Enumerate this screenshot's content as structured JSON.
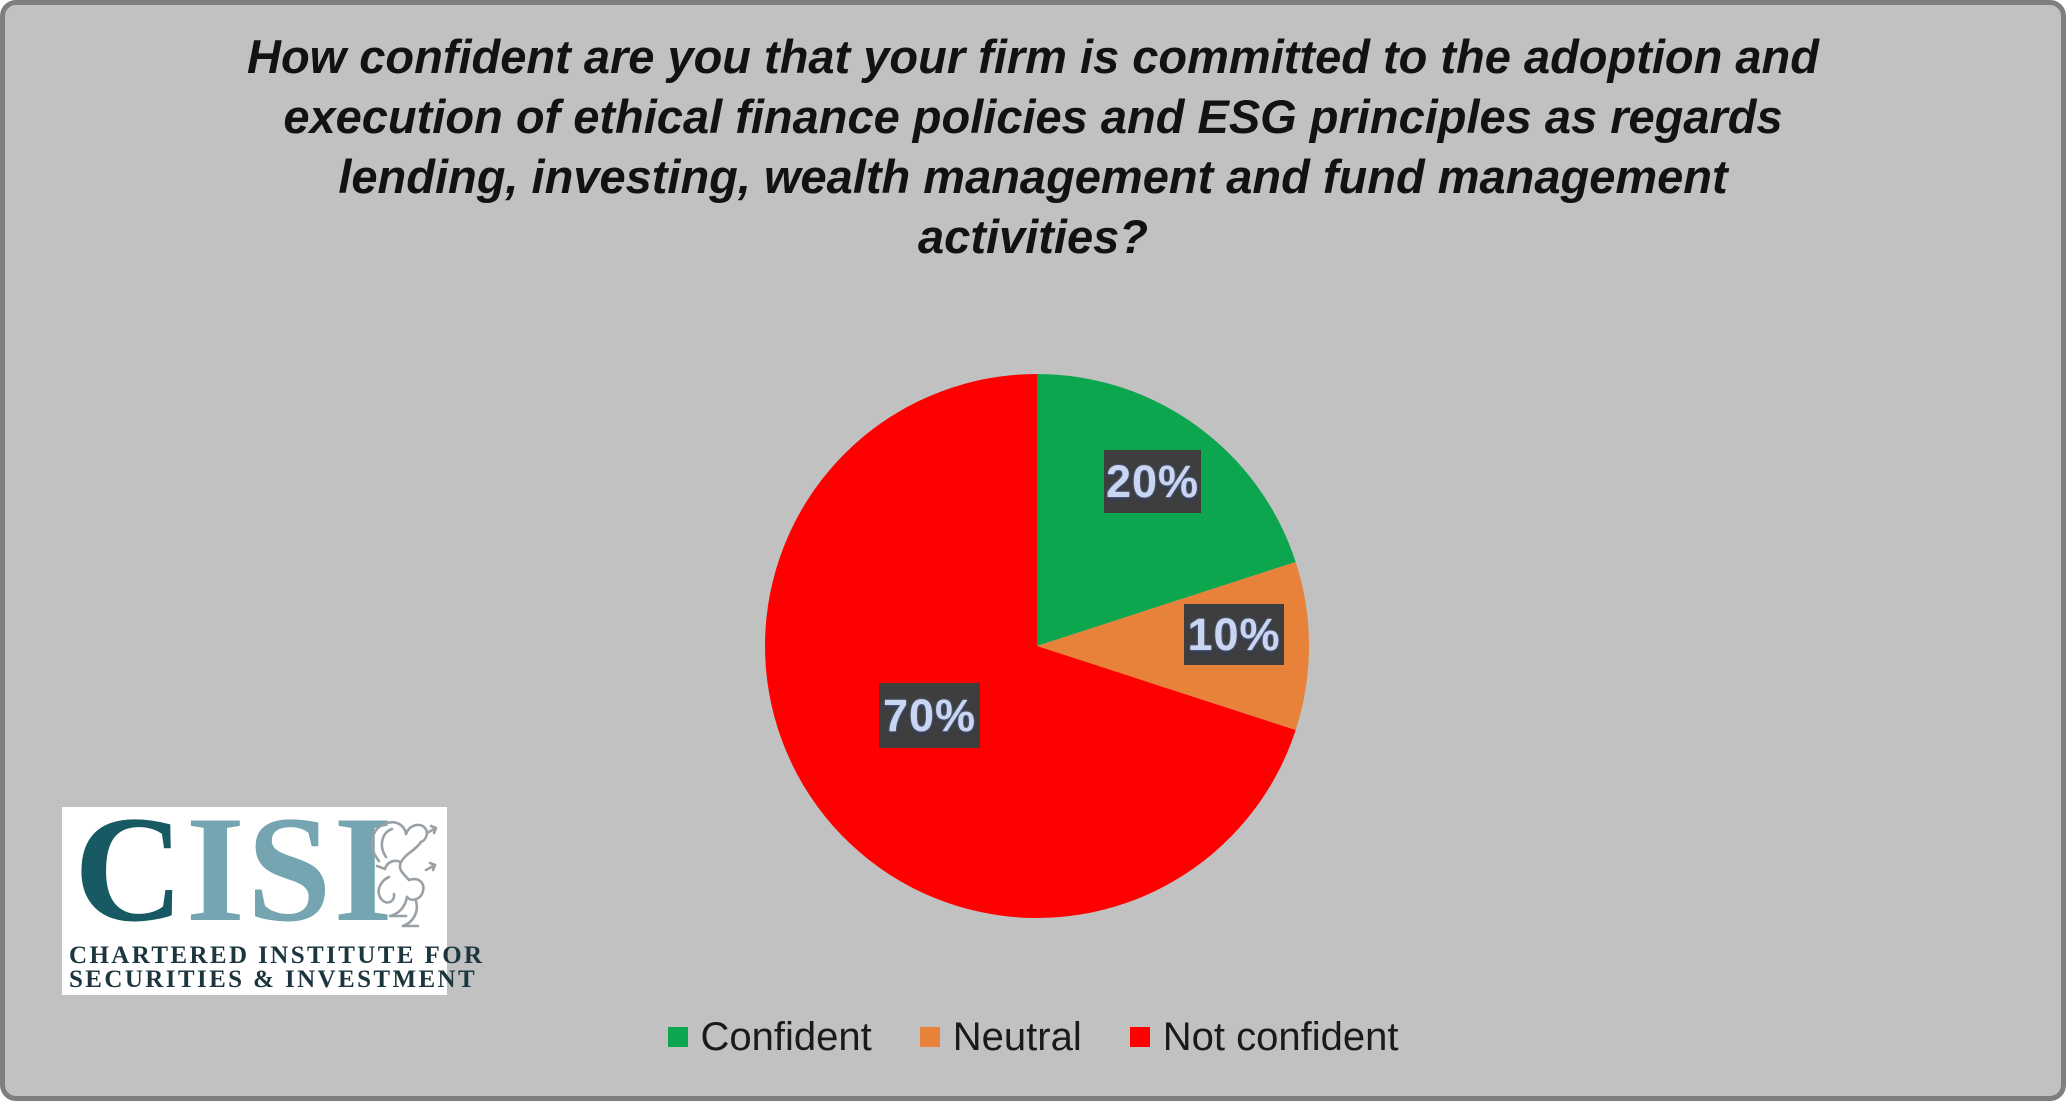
{
  "title": {
    "full_text": "How confident are you that your firm is committed to the adoption and execution of ethical finance policies and ESG principles as regards lending, investing, wealth management and fund management activities?",
    "lines": [
      "How confident are you that your firm is committed to the adoption and",
      "execution of ethical finance policies and ESG principles as regards",
      "lending, investing, wealth management and fund management",
      "activities?"
    ]
  },
  "chart_data": {
    "type": "pie",
    "title": "How confident are you that your firm is committed to the adoption and execution of ethical finance policies and ESG principles as regards lending, investing, wealth management and fund management activities?",
    "categories": [
      "Confident",
      "Neutral",
      "Not confident"
    ],
    "values": [
      20,
      10,
      70
    ],
    "unit": "%",
    "colors": [
      "#0ca64f",
      "#e8823a",
      "#fe0000"
    ],
    "data_labels": [
      "20%",
      "10%",
      "70%"
    ],
    "start_angle_deg": 0,
    "direction": "clockwise",
    "legend_position": "bottom",
    "data_label_bg": "#3e3e3e",
    "data_label_color": "#c9d6f2",
    "background": "#c1c1c1",
    "frame_border_color": "#7e7e7e"
  },
  "legend": {
    "items": [
      {
        "label": "Confident",
        "color": "#0ca64f"
      },
      {
        "label": "Neutral",
        "color": "#e8823a"
      },
      {
        "label": "Not confident",
        "color": "#fe0000"
      }
    ]
  },
  "logo": {
    "letter_first": "C",
    "letters_rest": "ISI",
    "caption_line1": "CHARTERED INSTITUTE FOR",
    "caption_line2": "SECURITIES & INVESTMENT",
    "color_first": "#175a64",
    "color_rest": "#74a5b0",
    "caption_color": "#1c3640",
    "griffin_color": "#9aa1a6"
  }
}
